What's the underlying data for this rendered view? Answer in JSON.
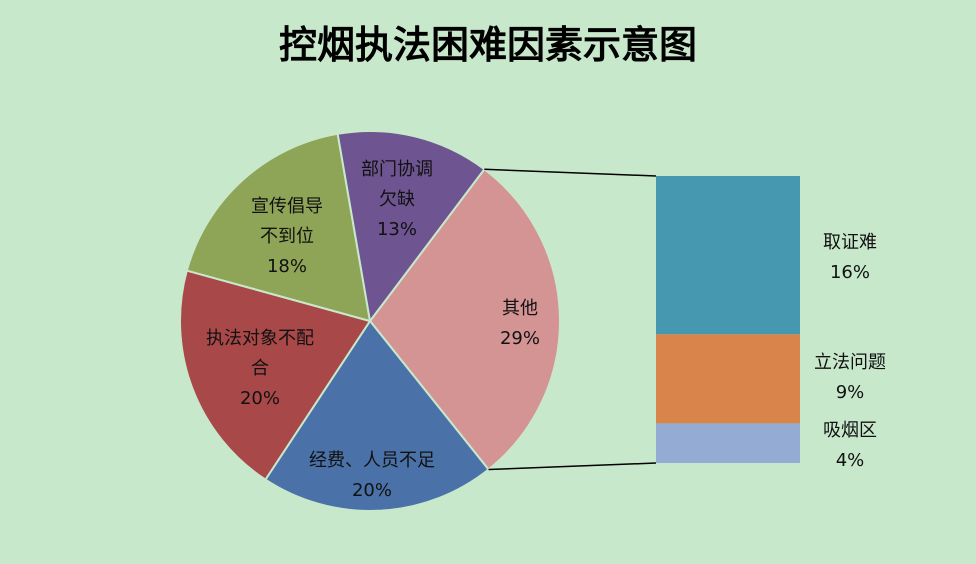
{
  "chart_data": {
    "type": "bar_of_pie",
    "title": "控烟执法困难因素示意图",
    "pie": {
      "categories": [
        "其他",
        "经费、人员不足",
        "执法对象不配合",
        "宣传倡导不到位",
        "部门协调欠缺"
      ],
      "values": [
        29,
        20,
        20,
        18,
        13
      ],
      "value_labels": [
        "29%",
        "20%",
        "20%",
        "18%",
        "13%"
      ],
      "colors": [
        "#d49494",
        "#4a72a8",
        "#a84848",
        "#8ea456",
        "#6e5490"
      ]
    },
    "bar": {
      "categories": [
        "取证难",
        "立法问题",
        "吸烟区"
      ],
      "values": [
        16,
        9,
        4
      ],
      "value_labels": [
        "16%",
        "9%",
        "4%"
      ],
      "colors": [
        "#4698b0",
        "#d8844a",
        "#94acd4"
      ]
    }
  }
}
